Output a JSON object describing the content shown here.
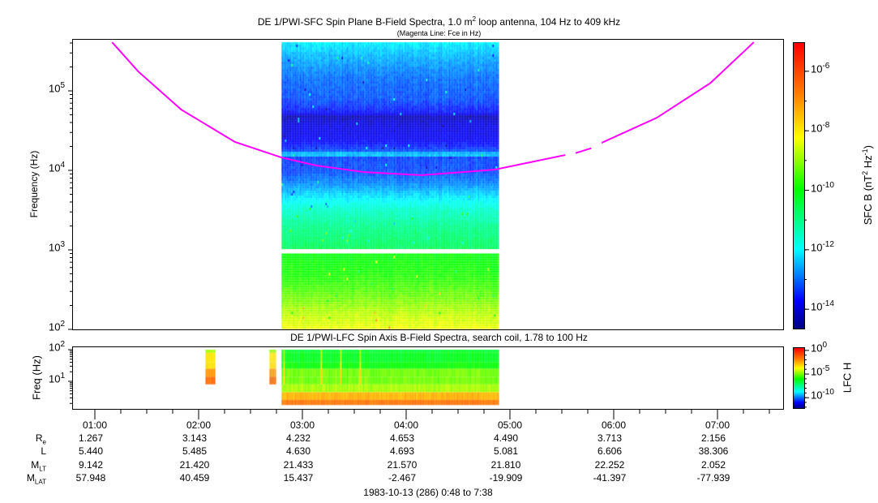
{
  "header": {
    "title": "DE 1/PWI-SFC  Spin Plane B-Field Spectra, 1.0 m",
    "title_sup": "2",
    "title_rest": " loop antenna, 104 Hz to 409 kHz",
    "subtitle": "(Magenta Line: Fce in Hz)",
    "lfc_title": "DE 1/PWI-LFC  Spin Axis B-Field Spectra, search coil, 1.78 to 100 Hz"
  },
  "colors": {
    "fce_line": "#ff00ff",
    "colormap": [
      "#00007f",
      "#0000ff",
      "#00ffff",
      "#00ff00",
      "#ffff00",
      "#ff8000",
      "#ff0000"
    ]
  },
  "chart_data": [
    {
      "type": "heatmap",
      "title": "DE 1/PWI-SFC  Spin Plane B-Field Spectra, 1.0 m² loop antenna, 104 Hz to 409 kHz",
      "ylabel": "Frequency (Hz)",
      "yscale": "log",
      "ylim": [
        100,
        409000
      ],
      "xlim": [
        "00:48",
        "07:38"
      ],
      "y_ticks": [
        {
          "base": "10",
          "exp": "2"
        },
        {
          "base": "10",
          "exp": "3"
        },
        {
          "base": "10",
          "exp": "4"
        },
        {
          "base": "10",
          "exp": "5"
        }
      ],
      "colorbar": {
        "label": "SFC B (nT",
        "label_sup1": "2",
        "label_mid": " Hz",
        "label_sup2": "-1",
        "label_end": ")",
        "scale": "log",
        "range_log10": [
          -14.65,
          -5.05
        ],
        "ticks": [
          {
            "base": "10",
            "exp": "-6"
          },
          {
            "base": "10",
            "exp": "-8"
          },
          {
            "base": "10",
            "exp": "-10"
          },
          {
            "base": "10",
            "exp": "-12"
          },
          {
            "base": "10",
            "exp": "-14"
          }
        ]
      },
      "coverage": {
        "start": "02:48",
        "end": "04:53"
      },
      "bands": [
        {
          "freq_range_hz": [
            1050,
            409000
          ],
          "spectrum_log10": [
            [
              1050,
              -10.6
            ],
            [
              2000,
              -11.0
            ],
            [
              3500,
              -11.6
            ],
            [
              5000,
              -12.2
            ],
            [
              7000,
              -12.8
            ],
            [
              10000,
              -13.2
            ],
            [
              15000,
              -13.3
            ],
            [
              16500,
              -12.0
            ],
            [
              18000,
              -13.2
            ],
            [
              25000,
              -13.8
            ],
            [
              40000,
              -14.0
            ],
            [
              50000,
              -14.3
            ],
            [
              55000,
              -13.6
            ],
            [
              80000,
              -13.2
            ],
            [
              150000,
              -13.0
            ],
            [
              250000,
              -12.6
            ],
            [
              409000,
              -12.1
            ]
          ]
        },
        {
          "freq_range_hz": [
            104,
            900
          ],
          "spectrum_log10": [
            [
              104,
              -8.3
            ],
            [
              150,
              -8.6
            ],
            [
              250,
              -9.2
            ],
            [
              500,
              -9.8
            ],
            [
              900,
              -10.0
            ]
          ]
        }
      ],
      "series": [
        {
          "name": "Fce in Hz",
          "segments": [
            [
              [
                "01:10",
                409000
              ],
              [
                "01:25",
                176000
              ],
              [
                "01:50",
                58000
              ],
              [
                "02:21",
                22800
              ],
              [
                "02:48",
                14500
              ],
              [
                "03:08",
                11500
              ],
              [
                "03:36",
                9500
              ],
              [
                "04:09",
                8700
              ],
              [
                "04:51",
                10200
              ],
              [
                "05:32",
                15600
              ]
            ],
            [
              [
                "05:38",
                16500
              ],
              [
                "05:47",
                19000
              ]
            ],
            [
              [
                "05:53",
                22200
              ],
              [
                "06:25",
                46000
              ],
              [
                "06:56",
                126000
              ],
              [
                "07:21",
                409000
              ]
            ]
          ]
        }
      ]
    },
    {
      "type": "heatmap",
      "title": "DE 1/PWI-LFC  Spin Axis B-Field Spectra, search coil, 1.78 to 100 Hz",
      "ylabel": "Freq (Hz)",
      "yscale": "log",
      "ylim": [
        1.78,
        100
      ],
      "xlim": [
        "00:48",
        "07:38"
      ],
      "y_ticks": [
        {
          "base": "10",
          "exp": "2"
        },
        {
          "base": "10",
          "exp": "1"
        }
      ],
      "colorbar": {
        "label": "LFC H",
        "scale": "log",
        "range_log10": [
          -12.2,
          0.5
        ],
        "ticks": [
          {
            "base": "10",
            "exp": "0"
          },
          {
            "base": "10",
            "exp": "-5"
          },
          {
            "base": "10",
            "exp": "-10"
          }
        ]
      },
      "rows_hz": [
        [
          80,
          100
        ],
        [
          40,
          80
        ],
        [
          25,
          40
        ],
        [
          14,
          25
        ],
        [
          8,
          14
        ],
        [
          4.5,
          8
        ],
        [
          2.6,
          4.5
        ],
        [
          1.78,
          2.6
        ]
      ],
      "coverage": {
        "start": "02:48",
        "end": "04:53",
        "rows_log10": [
          -6.5,
          -6.3,
          -6.0,
          -5.0,
          -5.0,
          -4.5,
          -2.5,
          -1.5
        ]
      },
      "extra_blocks": [
        {
          "start": "02:04",
          "end": "02:09",
          "rows_log10": [
            -4.5,
            -3.2,
            -3.2,
            -2.0,
            -1.3,
            null,
            null,
            null
          ]
        },
        {
          "start": "02:41",
          "end": "02:44",
          "rows_log10": [
            -4.6,
            -3.4,
            -3.2,
            -2.2,
            -1.5,
            null,
            null,
            null
          ]
        }
      ]
    }
  ],
  "x_axis": {
    "ticks": [
      "01:00",
      "02:00",
      "03:00",
      "04:00",
      "05:00",
      "06:00",
      "07:00"
    ],
    "minor_step_min": 15,
    "footer": "1983-10-13 (286) 0:48 to 7:38"
  },
  "ephemeris": {
    "rows": [
      {
        "label": "R",
        "sub": "e",
        "values": [
          "1.267",
          "3.143",
          "4.232",
          "4.653",
          "4.490",
          "3.713",
          "2.156"
        ]
      },
      {
        "label": "L",
        "sub": "",
        "values": [
          "5.440",
          "5.485",
          "4.630",
          "4.693",
          "5.081",
          "6.606",
          "38.306"
        ]
      },
      {
        "label": "M",
        "sub": "LT",
        "values": [
          "9.142",
          "21.420",
          "21.433",
          "21.570",
          "21.810",
          "22.252",
          "2.052"
        ]
      },
      {
        "label": "M",
        "sub": "LAT",
        "values": [
          "57.948",
          "40.459",
          "15.437",
          "-2.467",
          "-19.909",
          "-41.397",
          "-77.939"
        ]
      }
    ]
  }
}
